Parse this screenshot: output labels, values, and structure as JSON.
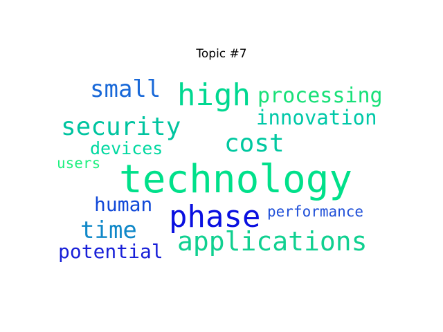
{
  "title": "Topic #7",
  "words": [
    {
      "text": "technology",
      "color": "#00e08a"
    },
    {
      "text": "phase",
      "color": "#0a10e0"
    },
    {
      "text": "applications",
      "color": "#10d090"
    },
    {
      "text": "high",
      "color": "#00d890"
    },
    {
      "text": "security",
      "color": "#00c4a0"
    },
    {
      "text": "processing",
      "color": "#18e078"
    },
    {
      "text": "small",
      "color": "#1868d8"
    },
    {
      "text": "innovation",
      "color": "#00c8a8"
    },
    {
      "text": "cost",
      "color": "#00c8a0"
    },
    {
      "text": "time",
      "color": "#1088c8"
    },
    {
      "text": "human",
      "color": "#1048d8"
    },
    {
      "text": "devices",
      "color": "#00d8a0"
    },
    {
      "text": "performance",
      "color": "#2050d8"
    },
    {
      "text": "potential",
      "color": "#1820d8"
    },
    {
      "text": "users",
      "color": "#20f080"
    }
  ]
}
